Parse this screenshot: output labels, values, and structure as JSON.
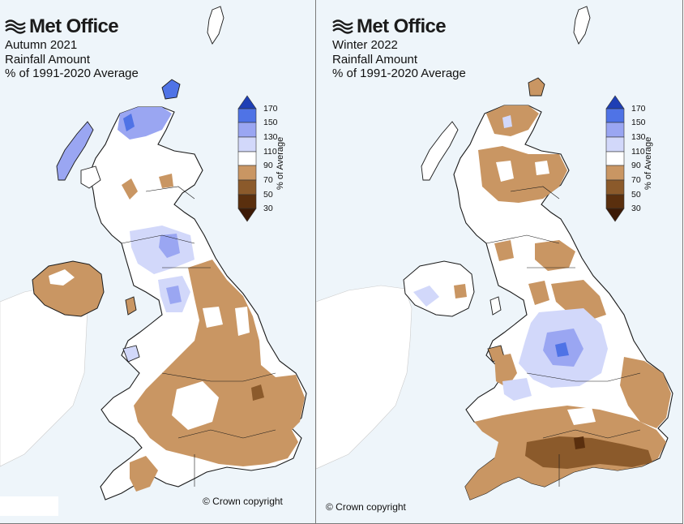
{
  "brand": "Met Office",
  "panels": [
    {
      "title_lines": [
        "Autumn 2021",
        "Rainfall Amount",
        "% of 1991-2020 Average"
      ],
      "copyright": "© Crown copyright",
      "dominant_anomaly": "mixed: blue over NW Scotland, brown over England"
    },
    {
      "title_lines": [
        "Winter 2022",
        "Rainfall Amount",
        "% of 1991-2020 Average"
      ],
      "copyright": "© Crown copyright",
      "dominant_anomaly": "mostly brown, blue over central England"
    }
  ],
  "legend": {
    "label": "% of Average",
    "ticks": [
      "170",
      "150",
      "130",
      "110",
      "90",
      "70",
      "50",
      "30"
    ],
    "bins": [
      {
        "color": "#1e3fb5"
      },
      {
        "color": "#4f73e6"
      },
      {
        "color": "#9aa6f2"
      },
      {
        "color": "#d2d8fa"
      },
      {
        "color": "#ffffff"
      },
      {
        "color": "#c99663"
      },
      {
        "color": "#8b5a2b"
      },
      {
        "color": "#5a2f0e"
      },
      {
        "color": "#3d1a06"
      }
    ]
  },
  "colors": {
    "sea": "#eef5fa",
    "neighbour_land": "#ffffff",
    "coast": "#1a1a1a",
    "brown": "#c99663",
    "dark_brown": "#8b5a2b",
    "light_blue": "#d2d8fa",
    "mid_blue": "#9aa6f2",
    "blue": "#4f73e6"
  },
  "icons": {
    "brand_logo": "met-office-wave-logo-icon"
  }
}
